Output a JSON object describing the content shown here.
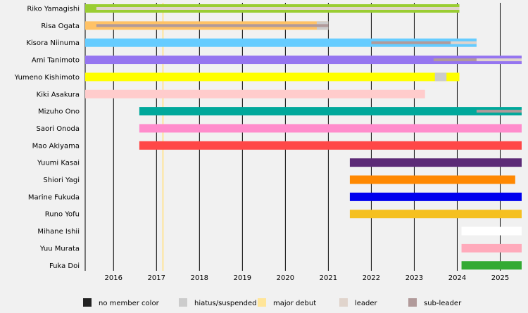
{
  "chart_data": {
    "type": "timeline",
    "xlim": [
      2015.34,
      2025.5
    ],
    "x_ticks": [
      2016,
      2017,
      2018,
      2019,
      2020,
      2021,
      2022,
      2023,
      2024,
      2025
    ],
    "major_debut": 2017.15,
    "legend": [
      {
        "label": "no member color",
        "color": "#222222"
      },
      {
        "label": "hiatus/suspended",
        "color": "#cccccc"
      },
      {
        "label": "major debut",
        "color": "#ffe599"
      },
      {
        "label": "leader",
        "color": "#e0d4cc"
      },
      {
        "label": "sub-leader",
        "color": "#b19a9a"
      }
    ],
    "members": [
      {
        "name": "Riko Yamagishi",
        "color": "#9acd32",
        "start": 2015.34,
        "end": 2024.05,
        "hiatus": [],
        "roles": [
          {
            "type": "leader",
            "start": 2015.6,
            "end": 2024.05
          }
        ]
      },
      {
        "name": "Risa Ogata",
        "color": "#ffc266",
        "start": 2015.34,
        "end": 2021.0,
        "hiatus": [
          [
            2020.73,
            2021.0
          ]
        ],
        "roles": [
          {
            "type": "sub-leader",
            "start": 2015.6,
            "end": 2021.0
          }
        ]
      },
      {
        "name": "Kisora Niinuma",
        "color": "#66ccff",
        "start": 2015.34,
        "end": 2024.45,
        "hiatus": [],
        "roles": [
          {
            "type": "sub-leader",
            "start": 2022.0,
            "end": 2023.85
          },
          {
            "type": "leader",
            "start": 2023.85,
            "end": 2024.45
          }
        ]
      },
      {
        "name": "Ami Tanimoto",
        "color": "#9575f0",
        "start": 2015.34,
        "end": 2025.5,
        "hiatus": [],
        "roles": [
          {
            "type": "sub-leader",
            "start": 2023.45,
            "end": 2024.45
          },
          {
            "type": "leader",
            "start": 2024.45,
            "end": 2025.5
          }
        ]
      },
      {
        "name": "Yumeno Kishimoto",
        "color": "#ffff00",
        "start": 2015.34,
        "end": 2024.05,
        "hiatus": [
          [
            2023.48,
            2023.75
          ]
        ],
        "roles": []
      },
      {
        "name": "Kiki Asakura",
        "color": "#ffcccc",
        "start": 2015.34,
        "end": 2023.25,
        "hiatus": [],
        "roles": []
      },
      {
        "name": "Mizuho Ono",
        "color": "#00a89b",
        "start": 2016.6,
        "end": 2025.5,
        "hiatus": [],
        "roles": [
          {
            "type": "sub-leader",
            "start": 2024.45,
            "end": 2025.5
          }
        ]
      },
      {
        "name": "Saori Onoda",
        "color": "#ff8ccc",
        "start": 2016.6,
        "end": 2025.5,
        "hiatus": [],
        "roles": []
      },
      {
        "name": "Mao Akiyama",
        "color": "#ff4747",
        "start": 2016.6,
        "end": 2025.5,
        "hiatus": [],
        "roles": []
      },
      {
        "name": "Yuumi Kasai",
        "color": "#5c2a76",
        "start": 2021.5,
        "end": 2025.5,
        "hiatus": [],
        "roles": []
      },
      {
        "name": "Shiori Yagi",
        "color": "#ff8800",
        "start": 2021.5,
        "end": 2025.35,
        "hiatus": [],
        "roles": []
      },
      {
        "name": "Marine Fukuda",
        "color": "#0000ee",
        "start": 2021.5,
        "end": 2025.5,
        "hiatus": [],
        "roles": []
      },
      {
        "name": "Runo Yofu",
        "color": "#f5c020",
        "start": 2021.5,
        "end": 2025.5,
        "hiatus": [],
        "roles": []
      },
      {
        "name": "Mihane Ishii",
        "color": "#ffffff",
        "start": 2024.1,
        "end": 2025.5,
        "hiatus": [],
        "roles": []
      },
      {
        "name": "Yuu Murata",
        "color": "#ffaabb",
        "start": 2024.1,
        "end": 2025.5,
        "hiatus": [],
        "roles": []
      },
      {
        "name": "Fuka Doi",
        "color": "#33aa33",
        "start": 2024.1,
        "end": 2025.5,
        "hiatus": [],
        "roles": []
      }
    ]
  }
}
